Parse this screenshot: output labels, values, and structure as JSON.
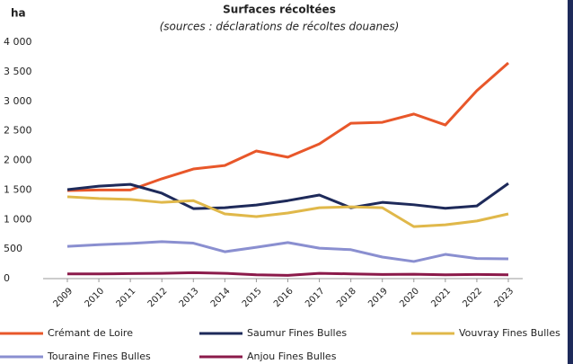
{
  "chart_data": {
    "type": "line",
    "title": "Surfaces récoltées",
    "subtitle": "(sources : déclarations de récoltes douanes)",
    "y_label": "ha",
    "categories": [
      "2009",
      "2010",
      "2011",
      "2012",
      "2013",
      "2014",
      "2015",
      "2016",
      "2017",
      "2018",
      "2019",
      "2020",
      "2021",
      "2022",
      "2023"
    ],
    "series": [
      {
        "name": "Crémant de Loire",
        "color": "#e8572a",
        "values": [
          1490,
          1500,
          1500,
          1690,
          1855,
          1915,
          2160,
          2055,
          2280,
          2630,
          2645,
          2785,
          2600,
          3180,
          3650
        ]
      },
      {
        "name": "Saumur Fines Bulles",
        "color": "#1e2a5a",
        "values": [
          1505,
          1565,
          1595,
          1445,
          1185,
          1200,
          1245,
          1320,
          1415,
          1200,
          1290,
          1250,
          1190,
          1230,
          1610
        ]
      },
      {
        "name": "Vouvray Fines Bulles",
        "color": "#e0b84a",
        "values": [
          1385,
          1355,
          1340,
          1290,
          1320,
          1095,
          1050,
          1110,
          1200,
          1215,
          1200,
          880,
          910,
          975,
          1095
        ]
      },
      {
        "name": "Touraine Fines Bulles",
        "color": "#8a8fd0",
        "values": [
          545,
          575,
          595,
          625,
          600,
          455,
          530,
          610,
          515,
          490,
          365,
          290,
          410,
          340,
          335
        ]
      },
      {
        "name": "Anjou Fines Bulles",
        "color": "#8b1a4a",
        "values": [
          80,
          80,
          85,
          90,
          100,
          90,
          65,
          55,
          90,
          80,
          70,
          75,
          65,
          70,
          65
        ]
      }
    ],
    "ylim": [
      0,
      4000
    ],
    "yticks": [
      0,
      500,
      {
        "value": 1000,
        "label": "1 000"
      },
      {
        "value": 1500,
        "label": "1 500"
      },
      {
        "value": 2000,
        "label": "2 000"
      },
      {
        "value": 2500,
        "label": "2 500"
      },
      {
        "value": 3000,
        "label": "3 000"
      },
      {
        "value": 3500,
        "label": "3 500"
      },
      {
        "value": 4000,
        "label": "4 000"
      }
    ],
    "grid": false
  }
}
